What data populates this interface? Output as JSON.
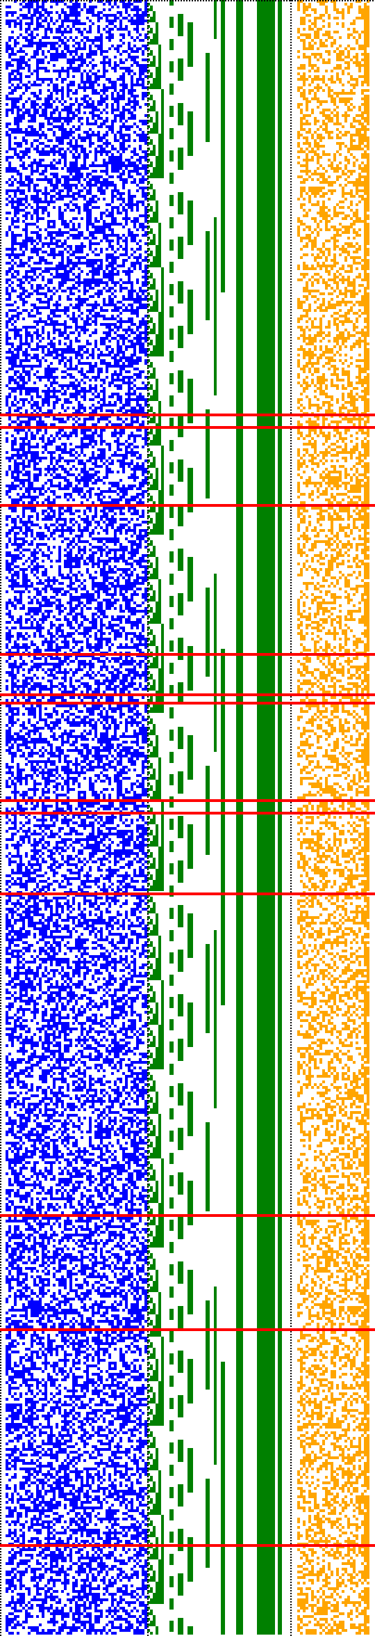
{
  "colors": {
    "background": "#ffffff",
    "blue_region": "#0000ff",
    "green_region": "#008000",
    "orange_region": "#ffa500",
    "highlight_rows": "#ff0000",
    "separator": "#000000"
  },
  "regions": [
    {
      "name": "blue-random-bit-field",
      "color_key": "blue_region"
    },
    {
      "name": "green-counter-stripes",
      "color_key": "green_region"
    },
    {
      "name": "orange-random-bit-field",
      "color_key": "orange_region"
    }
  ],
  "highlight_row_count": 12,
  "separators": [
    "top-dotted-border",
    "left-dotted-border",
    "blue-green-dotted-divider",
    "green-orange-dotted-divider"
  ]
}
